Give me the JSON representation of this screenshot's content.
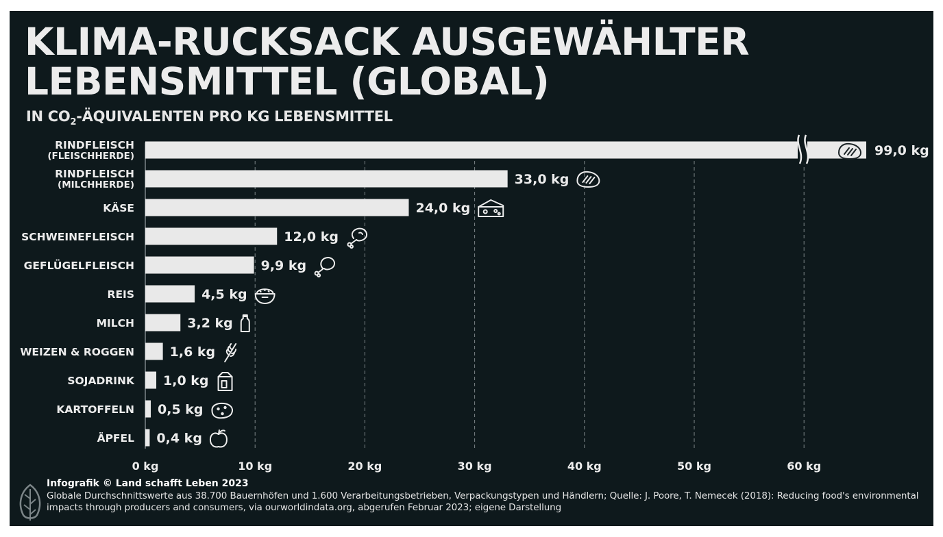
{
  "colors": {
    "background": "#0e191c",
    "bar": "#e9e9e9",
    "text": "#ececec",
    "grid": "#7d8689"
  },
  "header": {
    "title_line1": "KLIMA-RUCKSACK AUSGEWÄHLTER",
    "title_line2": "LEBENSMITTEL (GLOBAL)",
    "subtitle_pre": "IN CO",
    "subtitle_sub": "2",
    "subtitle_post": "-ÄQUIVALENTEN PRO KG LEBENSMITTEL"
  },
  "chart_data": {
    "type": "bar",
    "orientation": "horizontal",
    "title": "KLIMA-RUCKSACK AUSGEWÄHLTER LEBENSMITTEL (GLOBAL)",
    "subtitle": "IN CO₂-ÄQUIVALENTEN PRO KG LEBENSMITTEL",
    "xlim": [
      0,
      60
    ],
    "axis_break_after": 60,
    "grid": "vertical dashed",
    "ticks": [
      {
        "value": 0,
        "label": "0 kg"
      },
      {
        "value": 10,
        "label": "10 kg"
      },
      {
        "value": 20,
        "label": "20 kg"
      },
      {
        "value": 30,
        "label": "30 kg"
      },
      {
        "value": 40,
        "label": "40 kg"
      },
      {
        "value": 50,
        "label": "50 kg"
      },
      {
        "value": 60,
        "label": "60 kg"
      }
    ],
    "items": [
      {
        "label_lines": [
          "RINDFLEISCH",
          "(FLEISCHHERDE)"
        ],
        "value": 99.0,
        "value_label": "99,0 kg",
        "icon": "steak-icon",
        "broken": true
      },
      {
        "label_lines": [
          "RINDFLEISCH",
          "(MILCHHERDE)"
        ],
        "value": 33.0,
        "value_label": "33,0 kg",
        "icon": "steak-icon"
      },
      {
        "label_lines": [
          "KÄSE"
        ],
        "value": 24.0,
        "value_label": "24,0 kg",
        "icon": "cheese-icon"
      },
      {
        "label_lines": [
          "SCHWEINEFLEISCH"
        ],
        "value": 12.0,
        "value_label": "12,0 kg",
        "icon": "ham-icon"
      },
      {
        "label_lines": [
          "GEFLÜGELFLEISCH"
        ],
        "value": 9.9,
        "value_label": "9,9 kg",
        "icon": "drumstick-icon"
      },
      {
        "label_lines": [
          "REIS"
        ],
        "value": 4.5,
        "value_label": "4,5 kg",
        "icon": "rice-bowl-icon"
      },
      {
        "label_lines": [
          "MILCH"
        ],
        "value": 3.2,
        "value_label": "3,2 kg",
        "icon": "milk-bottle-icon"
      },
      {
        "label_lines": [
          "WEIZEN & ROGGEN"
        ],
        "value": 1.6,
        "value_label": "1,6 kg",
        "icon": "wheat-icon"
      },
      {
        "label_lines": [
          "SOJADRINK"
        ],
        "value": 1.0,
        "value_label": "1,0 kg",
        "icon": "carton-icon"
      },
      {
        "label_lines": [
          "KARTOFFELN"
        ],
        "value": 0.5,
        "value_label": "0,5 kg",
        "icon": "potato-icon"
      },
      {
        "label_lines": [
          "ÄPFEL"
        ],
        "value": 0.4,
        "value_label": "0,4 kg",
        "icon": "apple-icon"
      }
    ]
  },
  "footer": {
    "credit": "Infografik © Land schafft Leben 2023",
    "source": "Globale Durchschnittswerte aus 38.700 Bauernhöfen und 1.600 Verarbeitungsbetrieben, Verpackungstypen und Händlern; Quelle: J. Poore, T. Nemecek (2018): Reducing food's environmental impacts through producers and consumers, via ourworldindata.org, abgerufen Februar 2023; eigene Darstellung",
    "logo_icon": "leaf-icon"
  }
}
